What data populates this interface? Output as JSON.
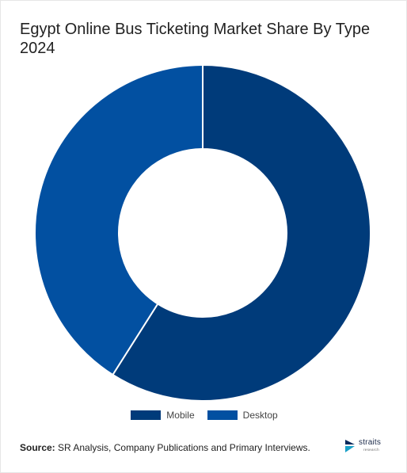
{
  "chart_data": {
    "type": "pie",
    "variant": "donut",
    "title": "Egypt Online Bus Ticketing Market Share By Type 2024",
    "categories": [
      "Mobile",
      "Desktop"
    ],
    "values": [
      59,
      41
    ],
    "colors": [
      "#003b7a",
      "#0250a1"
    ],
    "start_angle_deg": 0,
    "direction": "clockwise",
    "legend_position": "bottom"
  },
  "source": {
    "label": "Source:",
    "text": "SR Analysis, Company Publications and Primary Interviews."
  },
  "logo": {
    "name": "straits",
    "subtext": "research",
    "icon": "straits-logo-icon"
  }
}
